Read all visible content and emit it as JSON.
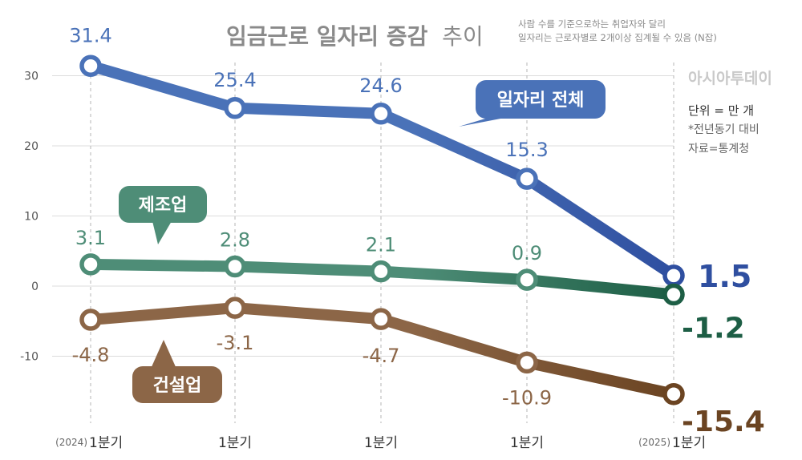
{
  "header": {
    "title_bold": "임금근로 일자리 증감",
    "title_light": "추이",
    "note_line1": "사람 수를 기준으로하는 취업자와 달리",
    "note_line2": "일자리는 근로자별로 2개이상 집계될 수 있음 (N잡)"
  },
  "brand": "아시아투데이",
  "info": {
    "unit": "단위 = 만 개",
    "basis": "*전년동기 대비",
    "source": "자료=통계청"
  },
  "colors": {
    "total": "#4a72b8",
    "total_end": "#2f4fa0",
    "manufacturing": "#4e8d77",
    "manufacturing_end": "#1d5e45",
    "construction": "#8c6647",
    "construction_end": "#6b4422"
  },
  "chart_data": {
    "type": "line",
    "x_prefix": [
      "(2024)",
      "",
      "",
      "",
      "(2025)"
    ],
    "categories": [
      "1분기",
      "1분기",
      "1분기",
      "1분기",
      "1분기"
    ],
    "yticks": [
      30,
      20,
      10,
      0,
      -10
    ],
    "ylim": [
      -21,
      35
    ],
    "grid": "vertical-dashed",
    "series": [
      {
        "name": "일자리 전체",
        "key": "total",
        "values": [
          31.4,
          25.4,
          24.6,
          15.3,
          1.5
        ],
        "labels": [
          "31.4",
          "25.4",
          "24.6",
          "15.3",
          "1.5"
        ]
      },
      {
        "name": "제조업",
        "key": "manufacturing",
        "values": [
          3.1,
          2.8,
          2.1,
          0.9,
          -1.2
        ],
        "labels": [
          "3.1",
          "2.8",
          "2.1",
          "0.9",
          "-1.2"
        ]
      },
      {
        "name": "건설업",
        "key": "construction",
        "values": [
          -4.8,
          -3.1,
          -4.7,
          -10.9,
          -15.4
        ],
        "labels": [
          "-4.8",
          "-3.1",
          "-4.7",
          "-10.9",
          "-15.4"
        ]
      }
    ]
  }
}
